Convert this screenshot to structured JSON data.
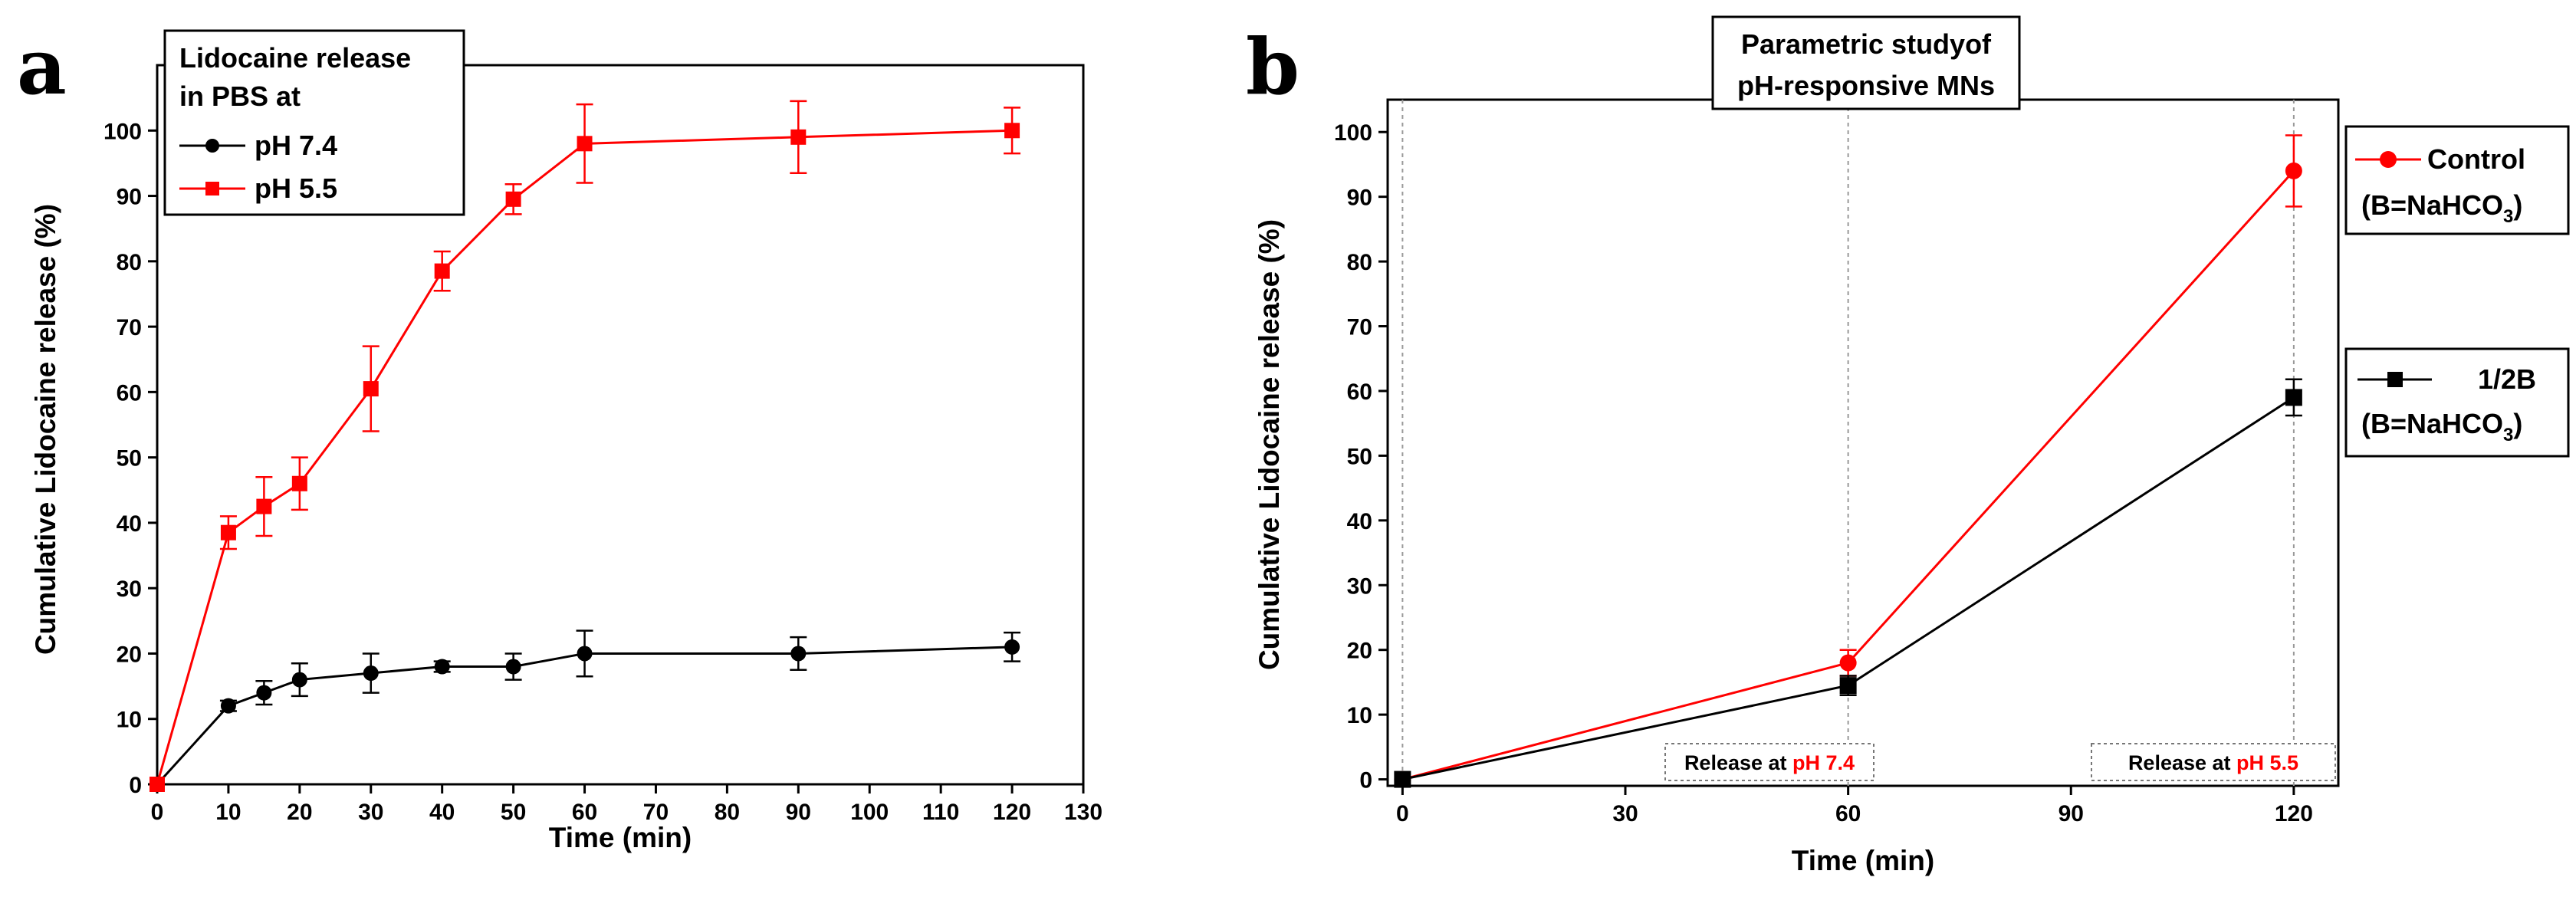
{
  "colors": {
    "red": "#ff0000",
    "black": "#000000",
    "grid": "#999999"
  },
  "chart_data": [
    {
      "panel": "a",
      "type": "line",
      "xlabel": "Time (min)",
      "ylabel": "Cumulative Lidocaine release (%)",
      "xlim": [
        0,
        130
      ],
      "ylim": [
        0,
        110
      ],
      "xticks": [
        0,
        10,
        20,
        30,
        40,
        50,
        60,
        70,
        80,
        90,
        100,
        110,
        120,
        130
      ],
      "yticks": [
        0,
        10,
        20,
        30,
        40,
        50,
        60,
        70,
        80,
        90,
        100
      ],
      "legend_title_lines": [
        "Lidocaine release",
        "in PBS at"
      ],
      "legend_position": "top-left",
      "series": [
        {
          "name": "pH 7.4",
          "color": "#000000",
          "marker": "circle",
          "x": [
            0,
            10,
            15,
            20,
            30,
            40,
            50,
            60,
            90,
            120
          ],
          "y": [
            0,
            12,
            14,
            16,
            17,
            18,
            18,
            20,
            20,
            21
          ],
          "err": [
            0,
            0.8,
            1.8,
            2.5,
            3,
            0.8,
            2,
            3.5,
            2.5,
            2.2
          ]
        },
        {
          "name": "pH 5.5",
          "color": "#ff0000",
          "marker": "square",
          "x": [
            0,
            10,
            15,
            20,
            30,
            40,
            50,
            60,
            90,
            120
          ],
          "y": [
            0,
            38.5,
            42.5,
            46,
            60.5,
            78.5,
            89.5,
            98,
            99,
            100
          ],
          "err": [
            0,
            2.5,
            4.5,
            4,
            6.5,
            3,
            2.3,
            6,
            5.5,
            3.5
          ]
        }
      ]
    },
    {
      "panel": "b",
      "type": "line",
      "xlabel": "Time (min)",
      "ylabel": "Cumulative Lidocaine release (%)",
      "xlim": [
        -2,
        126
      ],
      "ylim": [
        -1,
        105
      ],
      "xticks": [
        0,
        30,
        60,
        90,
        120
      ],
      "yticks": [
        0,
        10,
        20,
        30,
        40,
        50,
        60,
        70,
        80,
        90,
        100
      ],
      "title_lines": [
        "Parametric studyof",
        "pH-responsive MNs"
      ],
      "vertical_lines_x": [
        0,
        60,
        120
      ],
      "annotations": [
        {
          "x": 60,
          "prefix": "Release at ",
          "highlight": "pH 7.4"
        },
        {
          "x": 120,
          "prefix": "Release at ",
          "highlight": "pH 5.5"
        }
      ],
      "series": [
        {
          "name": "Control",
          "legend_sub": "(B=NaHCO",
          "legend_subscript": "3",
          "legend_close": ")",
          "color": "#ff0000",
          "marker": "circle",
          "x": [
            0,
            60,
            120
          ],
          "y": [
            0,
            18,
            94
          ],
          "err": [
            0,
            2,
            5.5
          ]
        },
        {
          "name": "1/2B",
          "legend_sub": "(B=NaHCO",
          "legend_subscript": "3",
          "legend_close": ")",
          "color": "#000000",
          "marker": "square",
          "x": [
            0,
            60,
            120
          ],
          "y": [
            0,
            14.5,
            59
          ],
          "err": [
            0,
            1.5,
            2.8
          ]
        }
      ]
    }
  ],
  "panel_labels": [
    "a",
    "b"
  ]
}
